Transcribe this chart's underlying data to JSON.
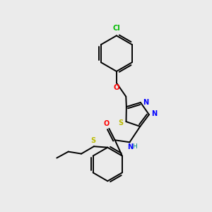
{
  "bg_color": "#ebebeb",
  "bond_color": "#000000",
  "atom_colors": {
    "Cl": "#00bb00",
    "O": "#ff0000",
    "N": "#0000ff",
    "S": "#bbbb00",
    "H": "#008888"
  },
  "figsize": [
    3.0,
    3.0
  ],
  "dpi": 100
}
